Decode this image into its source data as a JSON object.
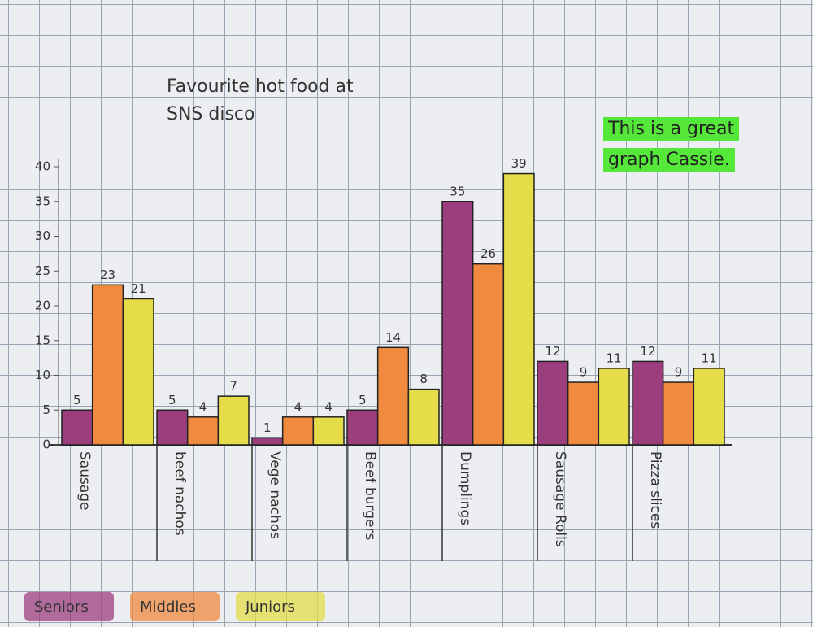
{
  "chart_data": {
    "type": "bar",
    "title": "Favourite hot food at SNS disco",
    "annotation": "This is a great graph Cassie.",
    "categories": [
      "Sausage",
      "beef nachos",
      "Vege nachos",
      "Beef burgers",
      "Dumplings",
      "Sausage Rolls",
      "Pizza slices"
    ],
    "series": [
      {
        "name": "Seniors",
        "color": "#9c3d7e",
        "values": [
          5,
          5,
          1,
          5,
          35,
          12,
          12
        ]
      },
      {
        "name": "Middles",
        "color": "#ef8a3f",
        "values": [
          23,
          4,
          4,
          14,
          26,
          9,
          9
        ]
      },
      {
        "name": "Juniors",
        "color": "#e4dc48",
        "values": [
          21,
          7,
          4,
          8,
          39,
          11,
          11
        ]
      }
    ],
    "ylim": [
      0,
      40
    ],
    "yticks": [
      0,
      5,
      10,
      15,
      20,
      25,
      30,
      35,
      40
    ],
    "legend": "bottom-left",
    "data_labels": true
  }
}
